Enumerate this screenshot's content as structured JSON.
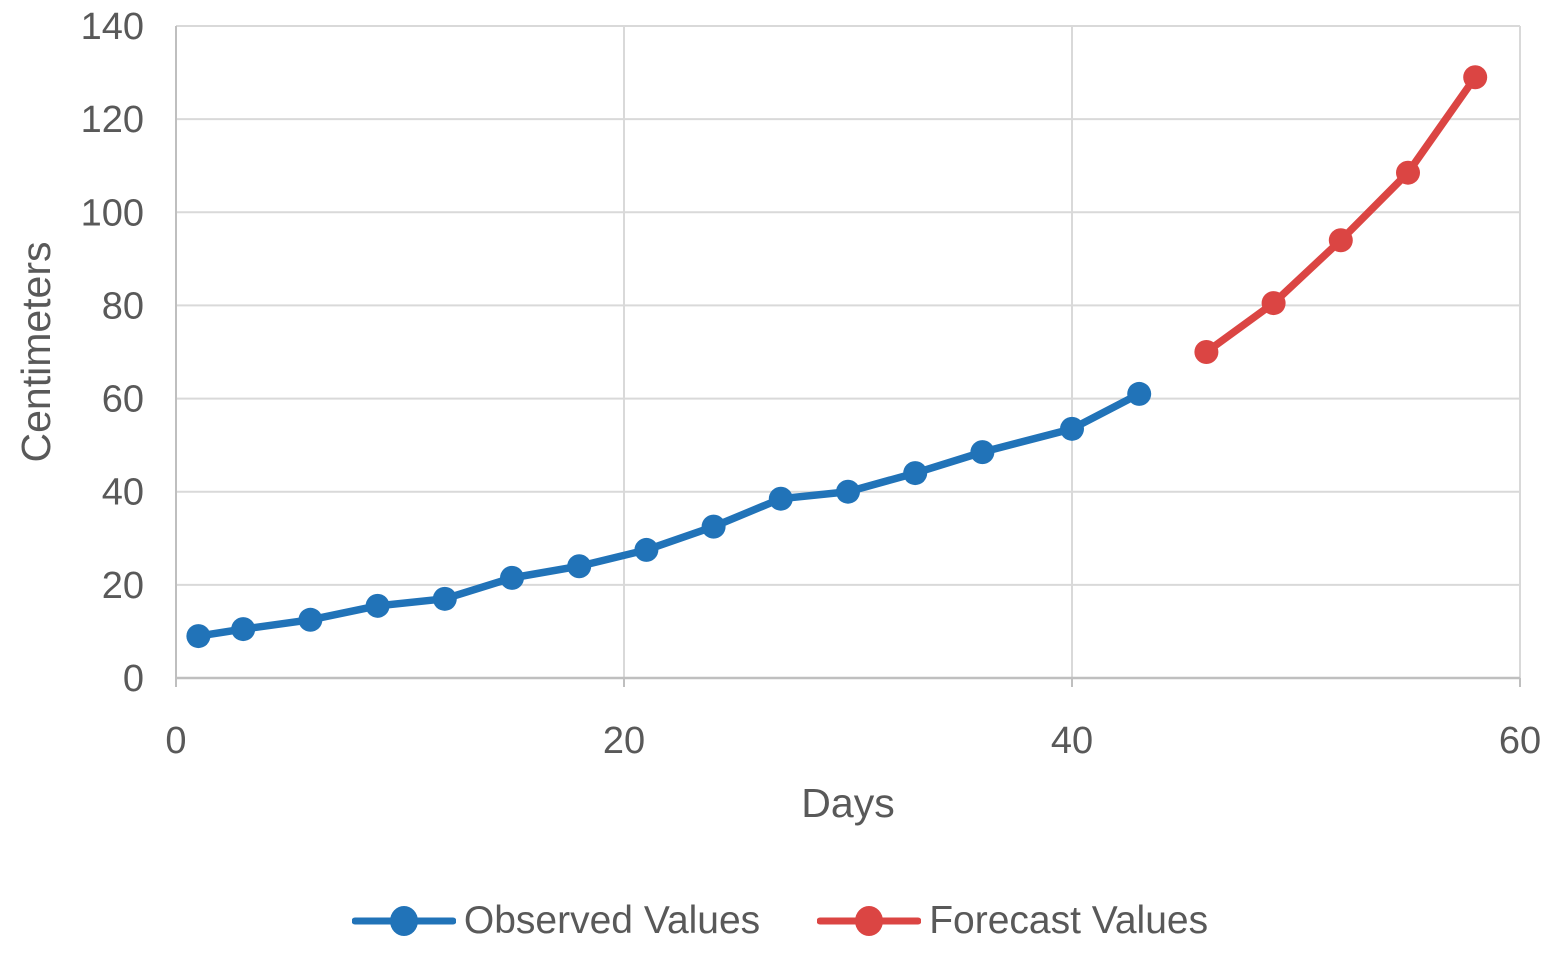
{
  "colors": {
    "background": "#FFFFFF",
    "text": "#595959",
    "gridline": "#D9D9D9",
    "axis": "#BFBFBF",
    "observed": "#2173B8",
    "forecast": "#DB4543"
  },
  "chart_data": {
    "type": "line",
    "title": "",
    "xlabel": "Days",
    "ylabel": "Centimeters",
    "xlim": [
      0,
      60
    ],
    "ylim": [
      0,
      140
    ],
    "x_ticks": [
      0,
      20,
      40,
      60
    ],
    "y_ticks": [
      0,
      20,
      40,
      60,
      80,
      100,
      120,
      140
    ],
    "grid": true,
    "legend_position": "bottom-center",
    "marker": "circle",
    "series": [
      {
        "name": "Observed Values",
        "color": "#2173B8",
        "x": [
          1,
          3,
          6,
          9,
          12,
          15,
          18,
          21,
          24,
          27,
          30,
          33,
          36,
          40,
          43
        ],
        "y": [
          9,
          10.5,
          12.5,
          15.5,
          17,
          21.5,
          24,
          27.5,
          32.5,
          38.5,
          40,
          44,
          48.5,
          53.5,
          61
        ]
      },
      {
        "name": "Forecast Values",
        "color": "#DB4543",
        "x": [
          46,
          49,
          52,
          55,
          58
        ],
        "y": [
          70,
          80.5,
          94,
          108.5,
          129
        ]
      }
    ]
  }
}
